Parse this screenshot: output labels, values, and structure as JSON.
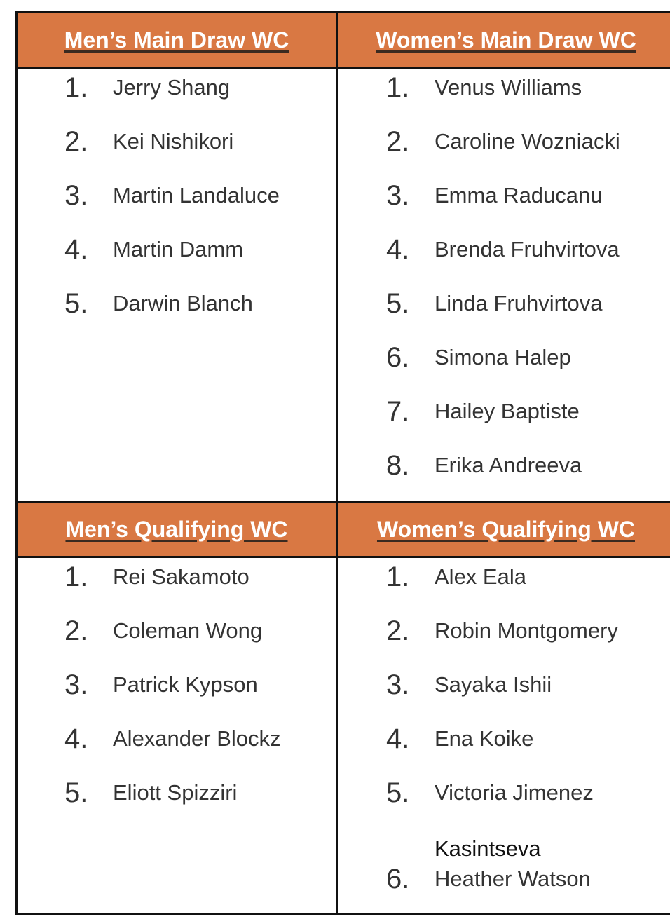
{
  "sections": {
    "mens_main": {
      "title": "Men’s Main Draw WC",
      "players": [
        "Jerry Shang",
        "Kei Nishikori",
        "Martin Landaluce",
        "Martin Damm",
        "Darwin Blanch"
      ]
    },
    "womens_main": {
      "title": "Women’s Main Draw WC",
      "players": [
        "Venus Williams",
        "Caroline Wozniacki",
        "Emma Raducanu",
        "Brenda Fruhvirtova",
        "Linda Fruhvirtova",
        "Simona Halep",
        "Hailey Baptiste",
        "Erika Andreeva"
      ]
    },
    "mens_qual": {
      "title": "Men’s Qualifying WC",
      "players": [
        "Rei Sakamoto",
        "Coleman Wong",
        "Patrick Kypson",
        "Alexander Blockz",
        "Eliott Spizziri"
      ]
    },
    "womens_qual": {
      "title": "Women’s Qualifying WC",
      "players": [
        "Alex Eala",
        "Robin Montgomery",
        "Sayaka Ishii",
        "Ena Koike",
        "Victoria Jimenez Kasintseva",
        "Heather Watson"
      ]
    }
  },
  "header_color": "#D97843"
}
